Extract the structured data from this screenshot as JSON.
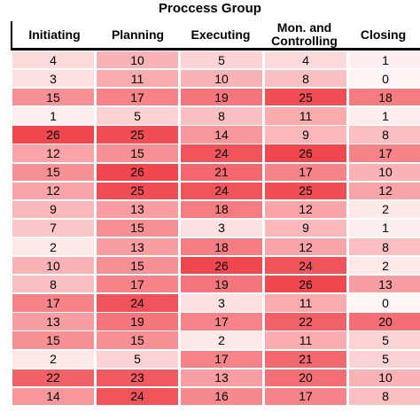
{
  "title": "Proccess Group",
  "columns": [
    "Initiating",
    "Planning",
    "Executing",
    "Mon. and\nControlling",
    "Closing"
  ],
  "rows": [
    [
      4,
      10,
      5,
      4,
      1
    ],
    [
      3,
      11,
      10,
      8,
      0
    ],
    [
      15,
      17,
      19,
      25,
      18
    ],
    [
      1,
      5,
      8,
      11,
      1
    ],
    [
      26,
      25,
      14,
      9,
      8
    ],
    [
      12,
      15,
      24,
      26,
      17
    ],
    [
      15,
      26,
      21,
      17,
      10
    ],
    [
      12,
      25,
      24,
      25,
      12
    ],
    [
      9,
      13,
      18,
      12,
      2
    ],
    [
      7,
      15,
      3,
      9,
      1
    ],
    [
      2,
      13,
      18,
      12,
      8
    ],
    [
      10,
      15,
      26,
      24,
      2
    ],
    [
      8,
      17,
      19,
      26,
      13
    ],
    [
      17,
      24,
      3,
      11,
      0
    ],
    [
      13,
      19,
      17,
      22,
      20
    ],
    [
      15,
      15,
      2,
      11,
      5
    ],
    [
      2,
      5,
      17,
      21,
      5
    ],
    [
      22,
      23,
      13,
      20,
      10
    ],
    [
      14,
      24,
      16,
      17,
      8
    ]
  ],
  "color_scale": {
    "low": "#fff5f5",
    "high": "#f0464e",
    "min": 0,
    "max": 26
  }
}
